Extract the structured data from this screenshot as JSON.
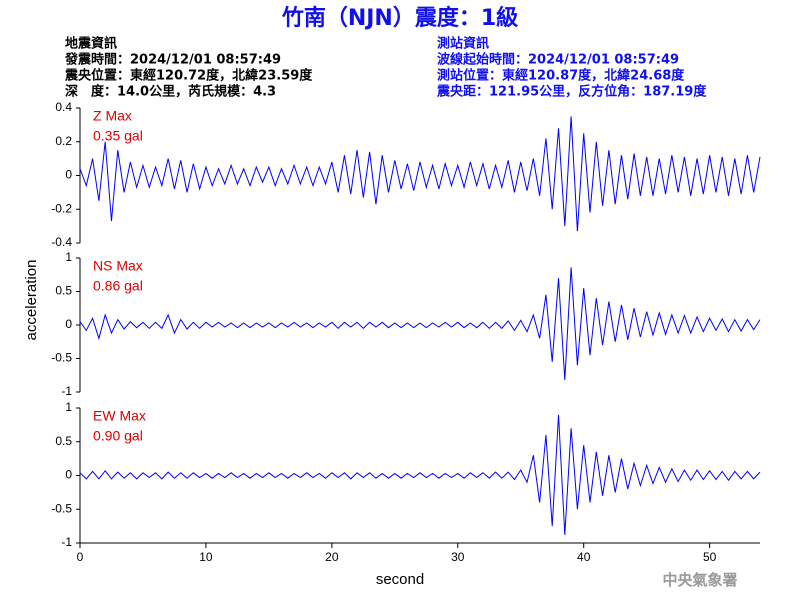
{
  "header": {
    "title": "竹南（NJN）震度：1級",
    "left": [
      "地震資訊",
      "發震時間：2024/12/01 08:57:49",
      "震央位置：東經120.72度，北緯23.59度",
      "深　度：14.0公里，芮氏規模：4.3"
    ],
    "right": [
      "測站資訊",
      "波線起始時間：2024/12/01 08:57:49",
      "測站位置：東經120.87度，北緯24.68度",
      "震央距：121.95公里，反方位角：187.19度"
    ]
  },
  "footer": {
    "agency": "中央氣象署"
  },
  "chart_data": [
    {
      "type": "line",
      "label": "Z Max",
      "max_label": "0.35 gal",
      "color": "#0000ff",
      "xlim": [
        0,
        54
      ],
      "ylim": [
        -0.4,
        0.4
      ],
      "yticks": [
        0.4,
        0.2,
        0,
        -0.2,
        -0.4
      ],
      "x": [
        0,
        0.5,
        1,
        1.5,
        2,
        2.5,
        3,
        3.5,
        4,
        4.5,
        5,
        5.5,
        6,
        6.5,
        7,
        7.5,
        8,
        8.5,
        9,
        9.5,
        10,
        10.5,
        11,
        11.5,
        12,
        12.5,
        13,
        13.5,
        14,
        14.5,
        15,
        15.5,
        16,
        16.5,
        17,
        17.5,
        18,
        18.5,
        19,
        19.5,
        20,
        20.5,
        21,
        21.5,
        22,
        22.5,
        23,
        23.5,
        24,
        24.5,
        25,
        25.5,
        26,
        26.5,
        27,
        27.5,
        28,
        28.5,
        29,
        29.5,
        30,
        30.5,
        31,
        31.5,
        32,
        32.5,
        33,
        33.5,
        34,
        34.5,
        35,
        35.5,
        36,
        36.5,
        37,
        37.5,
        38,
        38.5,
        39,
        39.5,
        40,
        40.5,
        41,
        41.5,
        42,
        42.5,
        43,
        43.5,
        44,
        44.5,
        45,
        45.5,
        46,
        46.5,
        47,
        47.5,
        48,
        48.5,
        49,
        49.5,
        50,
        50.5,
        51,
        51.5,
        52,
        52.5,
        53,
        53.5,
        54
      ],
      "values": [
        0.04,
        -0.06,
        0.1,
        -0.15,
        0.2,
        -0.27,
        0.15,
        -0.1,
        0.08,
        -0.07,
        0.06,
        -0.07,
        0.05,
        -0.06,
        0.1,
        -0.08,
        0.09,
        -0.1,
        0.07,
        -0.08,
        0.05,
        -0.06,
        0.04,
        -0.05,
        0.06,
        -0.05,
        0.04,
        -0.06,
        0.05,
        -0.04,
        0.05,
        -0.06,
        0.04,
        -0.05,
        0.06,
        -0.05,
        0.05,
        -0.06,
        0.05,
        -0.05,
        0.08,
        -0.1,
        0.12,
        -0.11,
        0.15,
        -0.13,
        0.14,
        -0.17,
        0.12,
        -0.1,
        0.09,
        -0.08,
        0.07,
        -0.09,
        0.08,
        -0.07,
        0.06,
        -0.08,
        0.07,
        -0.06,
        0.06,
        -0.07,
        0.08,
        -0.06,
        0.07,
        -0.08,
        0.06,
        -0.07,
        0.09,
        -0.1,
        0.08,
        -0.09,
        0.1,
        -0.12,
        0.22,
        -0.2,
        0.28,
        -0.3,
        0.35,
        -0.33,
        0.25,
        -0.22,
        0.2,
        -0.18,
        0.15,
        -0.17,
        0.12,
        -0.14,
        0.13,
        -0.12,
        0.11,
        -0.12,
        0.1,
        -0.11,
        0.12,
        -0.1,
        0.11,
        -0.12,
        0.1,
        -0.11,
        0.12,
        -0.1,
        0.11,
        -0.12,
        0.1,
        -0.11,
        0.12,
        -0.1,
        0.11
      ]
    },
    {
      "type": "line",
      "label": "NS Max",
      "max_label": "0.86 gal",
      "ylabel": "acceleration",
      "color": "#0000ff",
      "xlim": [
        0,
        54
      ],
      "ylim": [
        -1,
        1
      ],
      "yticks": [
        1,
        0.5,
        0,
        -0.5,
        -1
      ],
      "x": [
        0,
        0.5,
        1,
        1.5,
        2,
        2.5,
        3,
        3.5,
        4,
        4.5,
        5,
        5.5,
        6,
        6.5,
        7,
        7.5,
        8,
        8.5,
        9,
        9.5,
        10,
        10.5,
        11,
        11.5,
        12,
        12.5,
        13,
        13.5,
        14,
        14.5,
        15,
        15.5,
        16,
        16.5,
        17,
        17.5,
        18,
        18.5,
        19,
        19.5,
        20,
        20.5,
        21,
        21.5,
        22,
        22.5,
        23,
        23.5,
        24,
        24.5,
        25,
        25.5,
        26,
        26.5,
        27,
        27.5,
        28,
        28.5,
        29,
        29.5,
        30,
        30.5,
        31,
        31.5,
        32,
        32.5,
        33,
        33.5,
        34,
        34.5,
        35,
        35.5,
        36,
        36.5,
        37,
        37.5,
        38,
        38.5,
        39,
        39.5,
        40,
        40.5,
        41,
        41.5,
        42,
        42.5,
        43,
        43.5,
        44,
        44.5,
        45,
        45.5,
        46,
        46.5,
        47,
        47.5,
        48,
        48.5,
        49,
        49.5,
        50,
        50.5,
        51,
        51.5,
        52,
        52.5,
        53,
        53.5,
        54
      ],
      "values": [
        0.05,
        -0.08,
        0.1,
        -0.2,
        0.15,
        -0.12,
        0.08,
        -0.06,
        0.05,
        -0.04,
        0.04,
        -0.05,
        0.04,
        -0.05,
        0.15,
        -0.12,
        0.08,
        -0.06,
        0.04,
        -0.05,
        0.04,
        -0.03,
        0.04,
        -0.03,
        0.03,
        -0.04,
        0.03,
        -0.04,
        0.03,
        -0.03,
        0.03,
        -0.04,
        0.03,
        -0.03,
        0.04,
        -0.03,
        0.03,
        -0.04,
        0.03,
        -0.03,
        0.04,
        -0.05,
        0.04,
        -0.03,
        0.04,
        -0.05,
        0.04,
        -0.03,
        0.04,
        -0.04,
        0.03,
        -0.04,
        0.03,
        -0.04,
        0.03,
        -0.04,
        0.03,
        -0.03,
        0.04,
        -0.03,
        0.04,
        -0.04,
        0.03,
        -0.04,
        0.04,
        -0.05,
        0.04,
        -0.05,
        0.06,
        -0.08,
        0.07,
        -0.1,
        0.15,
        -0.2,
        0.45,
        -0.55,
        0.7,
        -0.82,
        0.86,
        -0.6,
        0.55,
        -0.45,
        0.4,
        -0.3,
        0.35,
        -0.25,
        0.3,
        -0.22,
        0.25,
        -0.18,
        0.2,
        -0.15,
        0.18,
        -0.14,
        0.15,
        -0.12,
        0.14,
        -0.12,
        0.12,
        -0.1,
        0.1,
        -0.08,
        0.09,
        -0.1,
        0.08,
        -0.09,
        0.08,
        -0.07,
        0.08
      ]
    },
    {
      "type": "line",
      "label": "EW Max",
      "max_label": "0.90 gal",
      "xlabel": "second",
      "color": "#0000ff",
      "xlim": [
        0,
        54
      ],
      "ylim": [
        -1,
        1
      ],
      "yticks": [
        1,
        0.5,
        0,
        -0.5,
        -1
      ],
      "xticks": [
        0,
        10,
        20,
        30,
        40,
        50
      ],
      "x": [
        0,
        0.5,
        1,
        1.5,
        2,
        2.5,
        3,
        3.5,
        4,
        4.5,
        5,
        5.5,
        6,
        6.5,
        7,
        7.5,
        8,
        8.5,
        9,
        9.5,
        10,
        10.5,
        11,
        11.5,
        12,
        12.5,
        13,
        13.5,
        14,
        14.5,
        15,
        15.5,
        16,
        16.5,
        17,
        17.5,
        18,
        18.5,
        19,
        19.5,
        20,
        20.5,
        21,
        21.5,
        22,
        22.5,
        23,
        23.5,
        24,
        24.5,
        25,
        25.5,
        26,
        26.5,
        27,
        27.5,
        28,
        28.5,
        29,
        29.5,
        30,
        30.5,
        31,
        31.5,
        32,
        32.5,
        33,
        33.5,
        34,
        34.5,
        35,
        35.5,
        36,
        36.5,
        37,
        37.5,
        38,
        38.5,
        39,
        39.5,
        40,
        40.5,
        41,
        41.5,
        42,
        42.5,
        43,
        43.5,
        44,
        44.5,
        45,
        45.5,
        46,
        46.5,
        47,
        47.5,
        48,
        48.5,
        49,
        49.5,
        50,
        50.5,
        51,
        51.5,
        52,
        52.5,
        53,
        53.5,
        54
      ],
      "values": [
        0.04,
        -0.05,
        0.06,
        -0.05,
        0.07,
        -0.05,
        0.05,
        -0.04,
        0.04,
        -0.05,
        0.04,
        -0.03,
        0.04,
        -0.05,
        0.05,
        -0.04,
        0.04,
        -0.04,
        0.04,
        -0.03,
        0.03,
        -0.04,
        0.03,
        -0.03,
        0.04,
        -0.03,
        0.03,
        -0.04,
        0.03,
        -0.03,
        0.04,
        -0.03,
        0.03,
        -0.04,
        0.03,
        -0.03,
        0.04,
        -0.03,
        0.03,
        -0.04,
        0.04,
        -0.03,
        0.04,
        -0.05,
        0.04,
        -0.03,
        0.04,
        -0.04,
        0.03,
        -0.04,
        0.03,
        -0.04,
        0.03,
        -0.03,
        0.04,
        -0.03,
        0.03,
        -0.04,
        0.03,
        -0.03,
        0.03,
        -0.04,
        0.04,
        -0.03,
        0.04,
        -0.04,
        0.05,
        -0.04,
        0.05,
        -0.06,
        0.08,
        -0.1,
        0.3,
        -0.4,
        0.6,
        -0.75,
        0.9,
        -0.88,
        0.7,
        -0.5,
        0.45,
        -0.4,
        0.35,
        -0.3,
        0.3,
        -0.25,
        0.25,
        -0.2,
        0.18,
        -0.15,
        0.15,
        -0.12,
        0.12,
        -0.1,
        0.1,
        -0.09,
        0.08,
        -0.07,
        0.08,
        -0.06,
        0.07,
        -0.06,
        0.06,
        -0.07,
        0.06,
        -0.05,
        0.06,
        -0.05,
        0.05
      ]
    }
  ]
}
